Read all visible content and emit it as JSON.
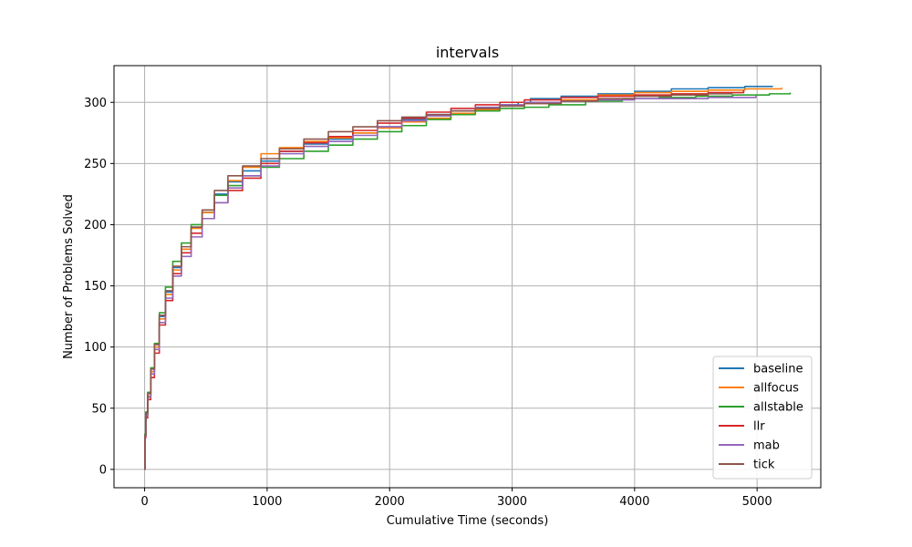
{
  "chart_data": {
    "type": "line",
    "title": "intervals",
    "xlabel": "Cumulative Time (seconds)",
    "ylabel": "Number of Problems Solved",
    "xlim": [
      -250,
      5520
    ],
    "ylim": [
      -15,
      330
    ],
    "xticks": [
      0,
      1000,
      2000,
      3000,
      4000,
      5000
    ],
    "yticks": [
      0,
      50,
      100,
      150,
      200,
      250,
      300
    ],
    "grid": true,
    "legend_position": "bottom-right",
    "series": [
      {
        "name": "baseline",
        "color": "#1f77b4",
        "x": [
          0,
          3,
          10,
          25,
          50,
          80,
          120,
          170,
          230,
          300,
          380,
          470,
          570,
          680,
          800,
          950,
          1100,
          1300,
          1500,
          1700,
          1900,
          2100,
          2300,
          2500,
          2700,
          2900,
          3050,
          3150,
          3400,
          3700,
          4000,
          4300,
          4600,
          4900,
          5130
        ],
        "y": [
          0,
          28,
          45,
          60,
          80,
          100,
          125,
          145,
          165,
          180,
          198,
          210,
          225,
          235,
          244,
          252,
          260,
          266,
          270,
          275,
          280,
          286,
          290,
          293,
          295,
          298,
          300,
          303,
          305,
          307,
          309,
          311,
          312,
          313,
          313
        ]
      },
      {
        "name": "allfocus",
        "color": "#ff7f0e",
        "x": [
          0,
          3,
          10,
          25,
          50,
          80,
          120,
          170,
          230,
          300,
          380,
          470,
          570,
          680,
          800,
          950,
          1100,
          1300,
          1500,
          1700,
          1900,
          2100,
          2300,
          2500,
          2700,
          2900,
          3100,
          3400,
          3700,
          4000,
          4300,
          4600,
          4900,
          5200
        ],
        "y": [
          0,
          27,
          44,
          60,
          80,
          100,
          123,
          143,
          163,
          180,
          197,
          210,
          224,
          236,
          247,
          258,
          263,
          268,
          271,
          275,
          279,
          284,
          287,
          291,
          294,
          297,
          299,
          302,
          306,
          308,
          309,
          310,
          311,
          312
        ]
      },
      {
        "name": "allstable",
        "color": "#2ca02c",
        "x": [
          0,
          3,
          10,
          25,
          50,
          80,
          120,
          170,
          230,
          300,
          380,
          470,
          570,
          680,
          800,
          950,
          1100,
          1300,
          1500,
          1700,
          1900,
          2100,
          2300,
          2500,
          2700,
          2900,
          3100,
          3300,
          3600,
          3900,
          4200,
          4500,
          4800,
          5100,
          5270
        ],
        "y": [
          0,
          29,
          47,
          63,
          83,
          103,
          128,
          149,
          170,
          185,
          200,
          212,
          224,
          232,
          240,
          247,
          254,
          260,
          265,
          270,
          276,
          281,
          286,
          290,
          293,
          295,
          296,
          298,
          301,
          303,
          304,
          305,
          306,
          307,
          308
        ]
      },
      {
        "name": "llr",
        "color": "#d62728",
        "x": [
          0,
          3,
          10,
          25,
          50,
          80,
          120,
          170,
          230,
          300,
          380,
          470,
          570,
          680,
          800,
          950,
          1100,
          1300,
          1500,
          1700,
          1900,
          2100,
          2300,
          2500,
          2700,
          2900,
          3100,
          3400,
          3700,
          4000,
          4300,
          4600,
          4890
        ],
        "y": [
          0,
          26,
          42,
          57,
          75,
          95,
          118,
          138,
          160,
          177,
          193,
          205,
          218,
          228,
          238,
          250,
          260,
          267,
          272,
          277,
          283,
          287,
          292,
          295,
          298,
          300,
          302,
          304,
          305,
          306,
          307,
          308,
          310
        ]
      },
      {
        "name": "mab",
        "color": "#9467bd",
        "x": [
          0,
          3,
          10,
          25,
          50,
          80,
          120,
          170,
          230,
          300,
          380,
          470,
          570,
          680,
          800,
          950,
          1100,
          1300,
          1500,
          1700,
          1900,
          2100,
          2300,
          2500,
          2700,
          2900,
          3100,
          3400,
          3700,
          4000,
          4300,
          4600,
          4990
        ],
        "y": [
          0,
          27,
          44,
          59,
          78,
          98,
          120,
          140,
          158,
          174,
          190,
          205,
          218,
          230,
          240,
          248,
          258,
          264,
          268,
          273,
          280,
          285,
          289,
          293,
          296,
          298,
          300,
          301,
          302,
          303,
          303,
          304,
          306
        ]
      },
      {
        "name": "tick",
        "color": "#8c564b",
        "x": [
          0,
          3,
          10,
          25,
          50,
          80,
          120,
          170,
          230,
          300,
          380,
          470,
          570,
          680,
          800,
          950,
          1100,
          1300,
          1500,
          1700,
          1900,
          2100,
          2300,
          2500,
          2700,
          2900,
          3100,
          3400,
          3700,
          4000,
          4300,
          4600,
          4800
        ],
        "y": [
          0,
          28,
          46,
          62,
          82,
          102,
          126,
          146,
          166,
          182,
          198,
          212,
          228,
          240,
          248,
          254,
          262,
          270,
          276,
          280,
          285,
          288,
          290,
          293,
          295,
          297,
          299,
          301,
          303,
          305,
          306,
          307,
          307
        ]
      }
    ]
  }
}
